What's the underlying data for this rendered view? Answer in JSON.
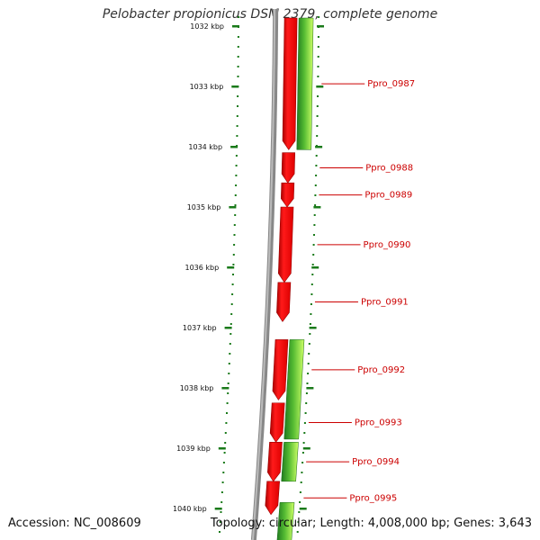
{
  "header": {
    "title": "Pelobacter propionicus DSM 2379, complete genome"
  },
  "footer": {
    "accession": "Accession: NC_008609",
    "topology": "Topology: circular; Length: 4,008,000 bp; Genes: 3,643"
  },
  "colors": {
    "backbone": "#888888",
    "gene_forward": "#ee0000",
    "gene_shadow": "#990000",
    "feature_dark": "#228822",
    "feature_light": "#aaee44",
    "tick": "#1a7a1a",
    "label": "#cc0000"
  },
  "position_axis": {
    "unit": "kbp",
    "labels": [
      "1032 kbp",
      "1033 kbp",
      "1034 kbp",
      "1035 kbp",
      "1036 kbp",
      "1037 kbp",
      "1038 kbp",
      "1039 kbp",
      "1040 kbp"
    ]
  },
  "genes": [
    {
      "name": "Ppro_0987",
      "start_kbp": 1031.8,
      "end_kbp": 1034.05
    },
    {
      "name": "Ppro_0988",
      "start_kbp": 1034.1,
      "end_kbp": 1034.6
    },
    {
      "name": "Ppro_0989",
      "start_kbp": 1034.6,
      "end_kbp": 1035.0
    },
    {
      "name": "Ppro_0990",
      "start_kbp": 1035.0,
      "end_kbp": 1036.25
    },
    {
      "name": "Ppro_0991",
      "start_kbp": 1036.25,
      "end_kbp": 1036.9
    },
    {
      "name": "Ppro_0992",
      "start_kbp": 1037.2,
      "end_kbp": 1038.2
    },
    {
      "name": "Ppro_0993",
      "start_kbp": 1038.25,
      "end_kbp": 1038.9
    },
    {
      "name": "Ppro_0994",
      "start_kbp": 1038.9,
      "end_kbp": 1039.55
    },
    {
      "name": "Ppro_0995",
      "start_kbp": 1039.55,
      "end_kbp": 1040.1
    }
  ]
}
